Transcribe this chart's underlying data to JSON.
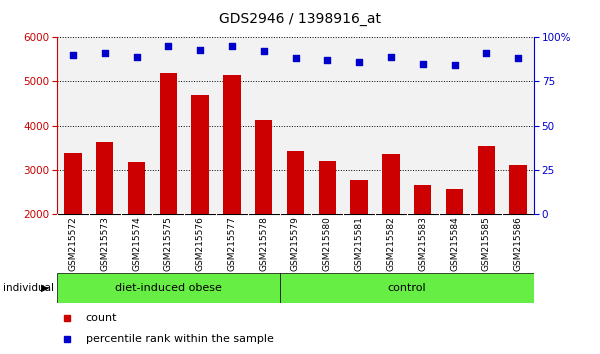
{
  "title": "GDS2946 / 1398916_at",
  "samples": [
    "GSM215572",
    "GSM215573",
    "GSM215574",
    "GSM215575",
    "GSM215576",
    "GSM215577",
    "GSM215578",
    "GSM215579",
    "GSM215580",
    "GSM215581",
    "GSM215582",
    "GSM215583",
    "GSM215584",
    "GSM215585",
    "GSM215586"
  ],
  "counts": [
    3380,
    3640,
    3180,
    5180,
    4700,
    5150,
    4130,
    3420,
    3200,
    2770,
    3350,
    2660,
    2560,
    3530,
    3110
  ],
  "percentile_ranks": [
    90,
    91,
    89,
    95,
    93,
    95,
    92,
    88,
    87,
    86,
    89,
    85,
    84,
    91,
    88
  ],
  "ylim_left": [
    2000,
    6000
  ],
  "ylim_right": [
    0,
    100
  ],
  "yticks_left": [
    2000,
    3000,
    4000,
    5000,
    6000
  ],
  "yticks_right": [
    0,
    25,
    50,
    75,
    100
  ],
  "bar_color": "#cc0000",
  "dot_color": "#0000cc",
  "group1_label": "diet-induced obese",
  "group1_count": 7,
  "group2_label": "control",
  "individual_label": "individual",
  "legend_count": "count",
  "legend_percentile": "percentile rank within the sample",
  "group_color": "#66ee44",
  "xtick_bg": "#c8c8c8",
  "plot_bg": "#f2f2f2",
  "white": "#ffffff"
}
